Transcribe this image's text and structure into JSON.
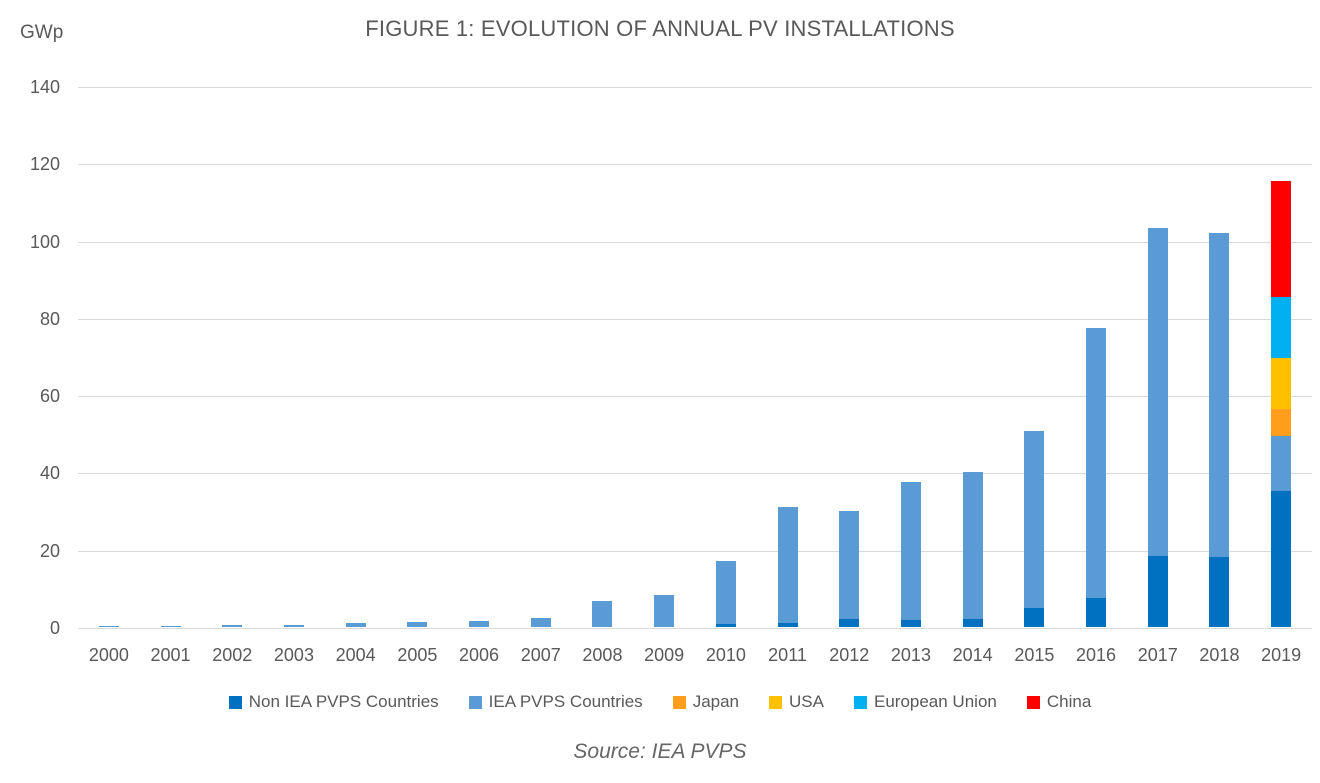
{
  "chart_data": {
    "type": "bar",
    "stacked": true,
    "title": "FIGURE 1: EVOLUTION OF ANNUAL PV INSTALLATIONS",
    "unit_label": "GWp",
    "source": "Source: IEA PVPS",
    "grid": true,
    "legend_position": "bottom",
    "ylim": [
      0,
      140
    ],
    "yticks": [
      0,
      20,
      40,
      60,
      80,
      100,
      120,
      140
    ],
    "categories": [
      "2000",
      "2001",
      "2002",
      "2003",
      "2004",
      "2005",
      "2006",
      "2007",
      "2008",
      "2009",
      "2010",
      "2011",
      "2012",
      "2013",
      "2014",
      "2015",
      "2016",
      "2017",
      "2018",
      "2019"
    ],
    "series": [
      {
        "name": "Non IEA PVPS Countries",
        "color": "#0070C0",
        "values": [
          0,
          0,
          0,
          0,
          0,
          0,
          0,
          0,
          0,
          0,
          0.8,
          1.0,
          2.0,
          1.8,
          2.0,
          4.8,
          7.6,
          18.5,
          18.0,
          35.2
        ]
      },
      {
        "name": "IEA PVPS Countries",
        "color": "#5B9BD5",
        "values": [
          0.3,
          0.35,
          0.45,
          0.6,
          1.1,
          1.4,
          1.5,
          2.4,
          6.7,
          8.2,
          16.4,
          30.0,
          28.0,
          35.8,
          38.0,
          45.9,
          69.7,
          84.7,
          84.0,
          14.3
        ]
      },
      {
        "name": "Japan",
        "color": "#FF9E1B",
        "values": [
          0,
          0,
          0,
          0,
          0,
          0,
          0,
          0,
          0,
          0,
          0,
          0,
          0,
          0,
          0,
          0,
          0,
          0,
          0,
          6.8
        ]
      },
      {
        "name": "USA",
        "color": "#FFC000",
        "values": [
          0,
          0,
          0,
          0,
          0,
          0,
          0,
          0,
          0,
          0,
          0,
          0,
          0,
          0,
          0,
          0,
          0,
          0,
          0,
          13.3
        ]
      },
      {
        "name": "European Union",
        "color": "#00B0F0",
        "values": [
          0,
          0,
          0,
          0,
          0,
          0,
          0,
          0,
          0,
          0,
          0,
          0,
          0,
          0,
          0,
          0,
          0,
          0,
          0,
          15.8
        ]
      },
      {
        "name": "China",
        "color": "#FF0000",
        "values": [
          0,
          0,
          0,
          0,
          0,
          0,
          0,
          0,
          0,
          0,
          0,
          0,
          0,
          0,
          0,
          0,
          0,
          0,
          0,
          30.1
        ]
      }
    ]
  }
}
